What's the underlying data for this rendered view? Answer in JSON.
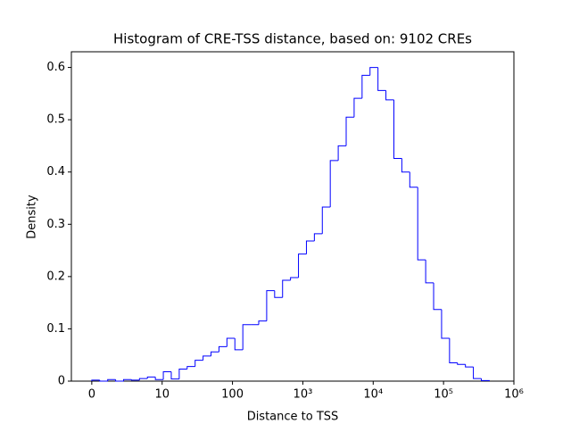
{
  "chart_data": {
    "type": "histogram",
    "title": "Histogram of CRE-TSS distance, based on: 9102 CREs",
    "x_label": "Distance to TSS",
    "y_label": "Density",
    "bins": [
      0,
      0.113,
      0.226,
      0.339,
      0.452,
      0.565,
      0.678,
      0.791,
      0.904,
      1.017,
      1.13,
      1.243,
      1.356,
      1.469,
      1.582,
      1.695,
      1.808,
      1.921,
      2.034,
      2.147,
      2.26,
      2.373,
      2.486,
      2.599,
      2.712,
      2.825,
      2.938,
      3.051,
      3.164,
      3.277,
      3.39,
      3.503,
      3.616,
      3.729,
      3.842,
      3.955,
      4.068,
      4.181,
      4.294,
      4.407,
      4.52,
      4.633,
      4.746,
      4.859,
      4.972,
      5.085,
      5.198,
      5.311,
      5.424,
      5.537,
      5.65
    ],
    "values": [
      0.002,
      0,
      0.003,
      0,
      0.003,
      0.002,
      0.005,
      0.008,
      0.003,
      0.018,
      0.004,
      0.023,
      0.028,
      0.04,
      0.048,
      0.056,
      0.066,
      0.082,
      0.06,
      0.108,
      0.108,
      0.115,
      0.173,
      0.16,
      0.193,
      0.198,
      0.243,
      0.268,
      0.282,
      0.333,
      0.422,
      0.45,
      0.505,
      0.541,
      0.585,
      0.6,
      0.556,
      0.538,
      0.426,
      0.4,
      0.371,
      0.232,
      0.188,
      0.137,
      0.082,
      0.035,
      0.032,
      0.027,
      0.005,
      0.001
    ],
    "color": "#0000ff",
    "xlim": [
      -0.29,
      6
    ],
    "xticks": [
      0,
      {
        "value": 1,
        "label": "10"
      },
      {
        "value": 2,
        "label": "100"
      },
      {
        "value": 3,
        "label": "10³"
      },
      {
        "value": 4,
        "label": "10⁴"
      },
      {
        "value": 5,
        "label": "10⁵"
      },
      {
        "value": 6,
        "label": "10⁶"
      }
    ],
    "ylim": [
      0,
      0.63
    ],
    "yticks": [
      0,
      0.1,
      0.2,
      0.3,
      0.4,
      0.5,
      0.6
    ]
  }
}
